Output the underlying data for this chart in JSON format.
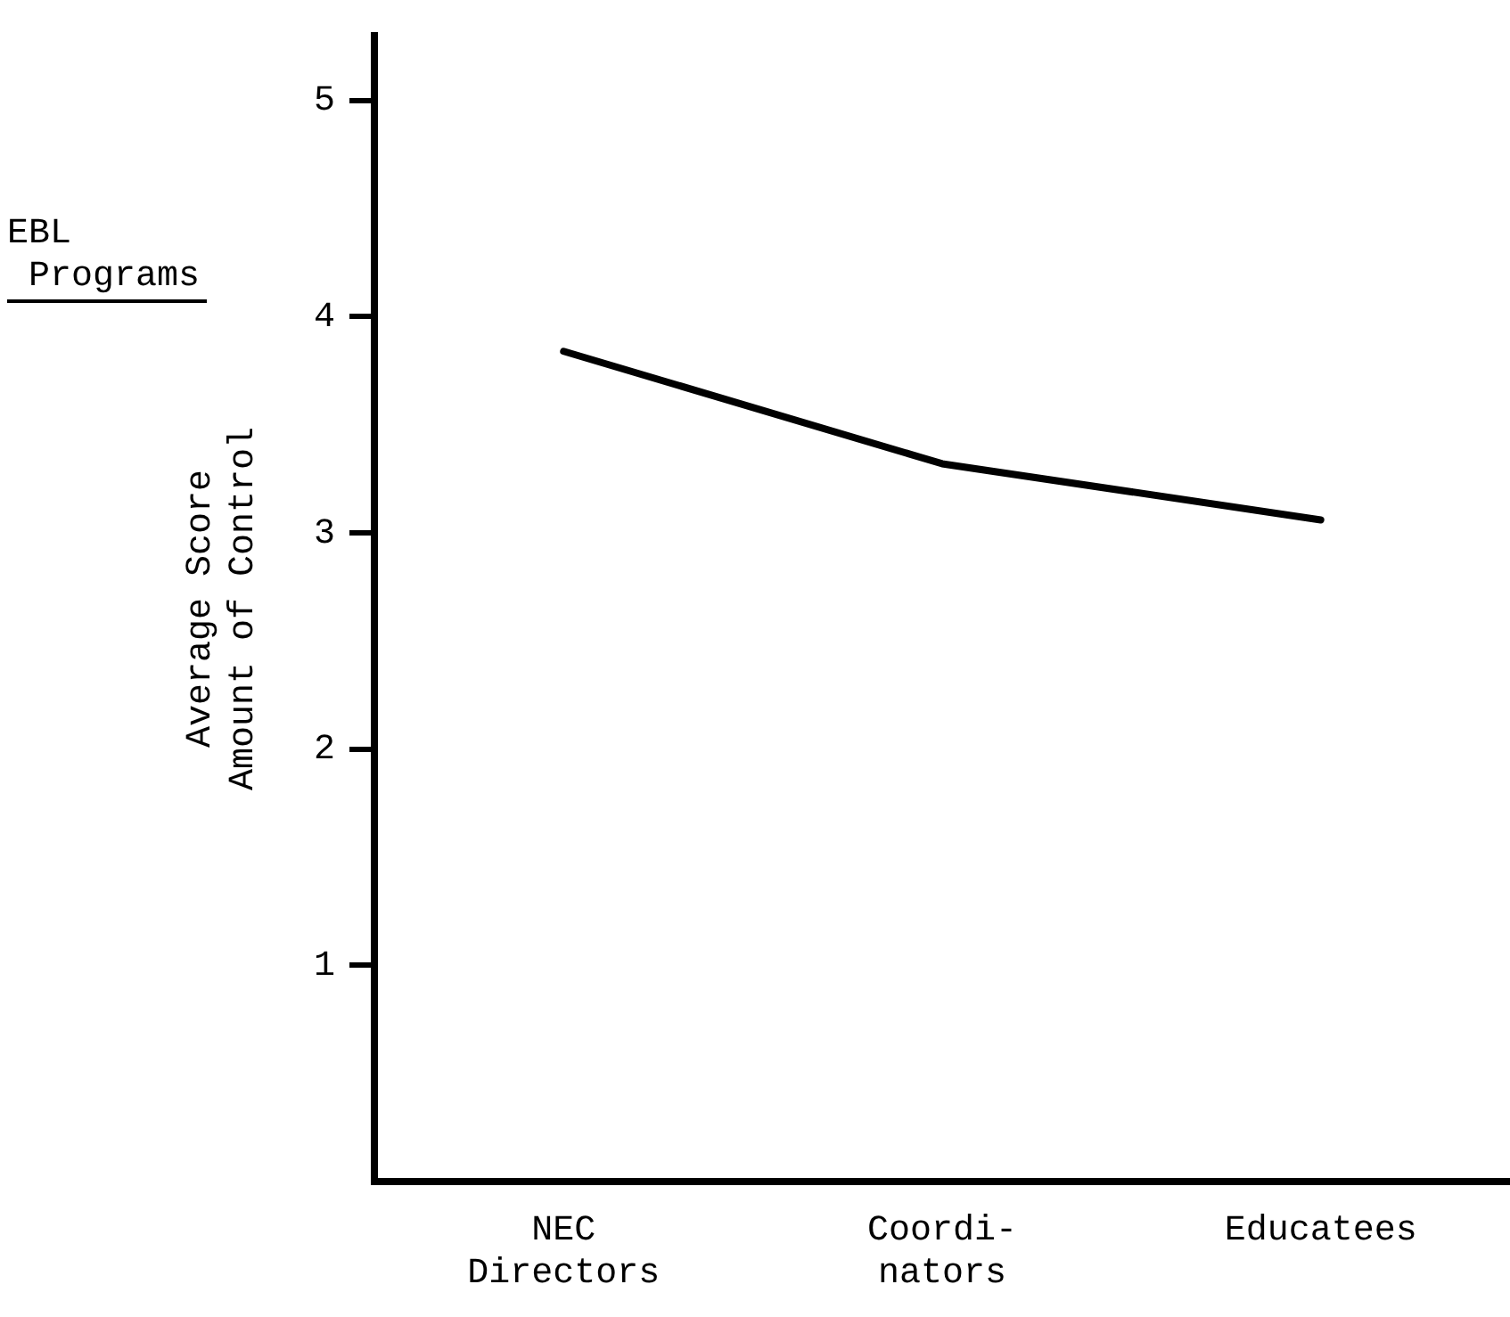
{
  "chart_data": {
    "type": "line",
    "title": "EBL Programs",
    "ylabel": "Average Score\nAmount of Control",
    "categories": [
      "NEC\nDirectors",
      "Coordi-\nnators",
      "Educatees"
    ],
    "series": [
      {
        "color": "#000000",
        "values": [
          3.84,
          3.32,
          3.06
        ]
      }
    ],
    "ylim": [
      0,
      5.3
    ],
    "yticks": [
      1,
      2,
      3,
      4,
      5
    ],
    "grid": false,
    "legend": false,
    "marker": "none",
    "line_style": "solid"
  }
}
